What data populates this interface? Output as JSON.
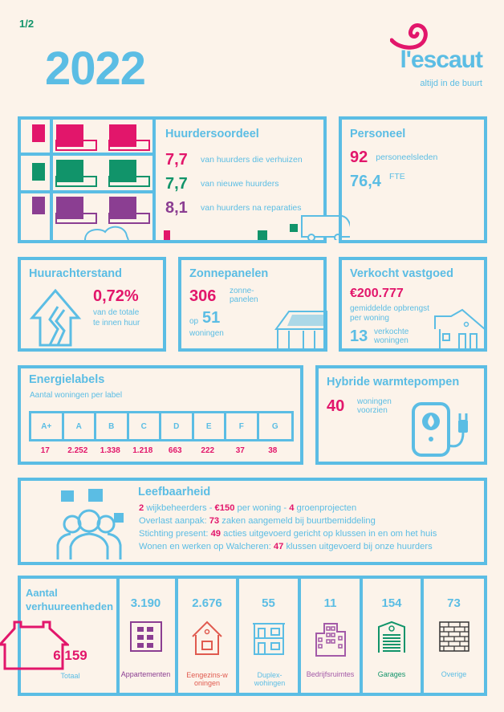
{
  "page_number": "1/2",
  "year": "2022",
  "logo": {
    "name": "l'escaut",
    "tagline": "altijd in de buurt"
  },
  "huurdersoordeel": {
    "title": "Huurdersoordeel",
    "items": [
      {
        "value": "7,7",
        "label": "van huurders die verhuizen"
      },
      {
        "value": "7,7",
        "label": "van nieuwe huurders"
      },
      {
        "value": "8,1",
        "label": "van huurders na reparaties"
      }
    ]
  },
  "personeel": {
    "title": "Personeel",
    "count": "92",
    "count_label": "personeelsleden",
    "fte": "76,4",
    "fte_label": "FTE"
  },
  "huurachterstand": {
    "title": "Huurachterstand",
    "value": "0,72%",
    "label1": "van de totale",
    "label2": "te innen huur"
  },
  "zonnepanelen": {
    "title": "Zonnepanelen",
    "panels": "306",
    "panels_label1": "zonne-",
    "panels_label2": "panelen",
    "op": "op",
    "homes": "51",
    "homes_label": "woningen"
  },
  "verkocht": {
    "title": "Verkocht vastgoed",
    "amount": "€200.777",
    "amount_label1": "gemiddelde opbrengst",
    "amount_label2": "per woning",
    "count": "13",
    "count_label1": "verkochte",
    "count_label2": "woningen"
  },
  "energielabels": {
    "title": "Energielabels",
    "subtitle": "Aantal woningen per label",
    "labels": [
      "A+",
      "A",
      "B",
      "C",
      "D",
      "E",
      "F",
      "G"
    ],
    "values": [
      "17",
      "2.252",
      "1.338",
      "1.218",
      "663",
      "222",
      "37",
      "38"
    ]
  },
  "hybride": {
    "title": "Hybride warmtepompen",
    "value": "40",
    "label1": "woningen",
    "label2": "voorzien"
  },
  "leefbaarheid": {
    "title": "Leefbaarheid",
    "l1": {
      "a": "2",
      "b": " wijkbeheerders - ",
      "c": "€150",
      "d": " per woning - ",
      "e": "4",
      "f": " groenprojecten"
    },
    "l2": {
      "a": "Overlast aanpak: ",
      "b": "73",
      "c": " zaken aangemeld bij buurtbemiddeling"
    },
    "l3": {
      "a": "Stichting present: ",
      "b": "49",
      "c": " acties uitgevoerd gericht op klussen in en om het huis"
    },
    "l4": {
      "a": "Wonen en werken op Walcheren: ",
      "b": "47",
      "c": " klussen uitgevoerd bij onze huurders"
    }
  },
  "verhuur": {
    "title1": "Aantal",
    "title2": "verhuureenheden",
    "total": "6.159",
    "total_label": "Totaal",
    "cols": [
      {
        "value": "3.190",
        "label": "Appartementen"
      },
      {
        "value": "2.676",
        "label": "Eengezins-woningen"
      },
      {
        "value": "55",
        "label": "Duplex-wohingen"
      },
      {
        "value": "11",
        "label": "Bedrijfsruimtes"
      },
      {
        "value": "154",
        "label": "Garages"
      },
      {
        "value": "73",
        "label": "Overige"
      }
    ]
  },
  "colors": {
    "blue": "#5bbde4",
    "pink": "#e2166b",
    "green": "#11946a",
    "purple": "#8b3e92",
    "background": "#fcf3ea"
  }
}
